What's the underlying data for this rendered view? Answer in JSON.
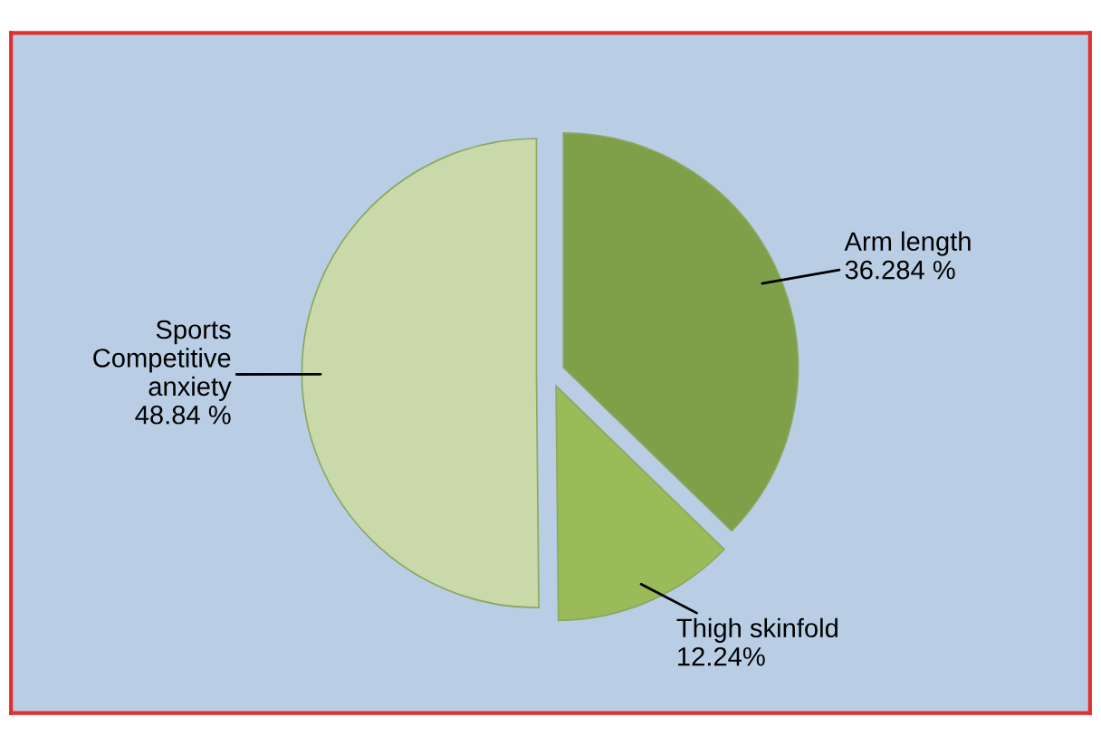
{
  "chart_data": {
    "type": "pie",
    "categories": [
      "Arm length",
      "Thigh skinfold",
      "Sports\nCompetitive\nanxiety"
    ],
    "values": [
      36.284,
      12.24,
      48.84
    ],
    "value_labels": [
      "36.284 %",
      "12.24%",
      "48.84 %"
    ],
    "colors": [
      "#7f9f48",
      "#9bbb59",
      "#c9d9a9"
    ],
    "legend": false
  }
}
